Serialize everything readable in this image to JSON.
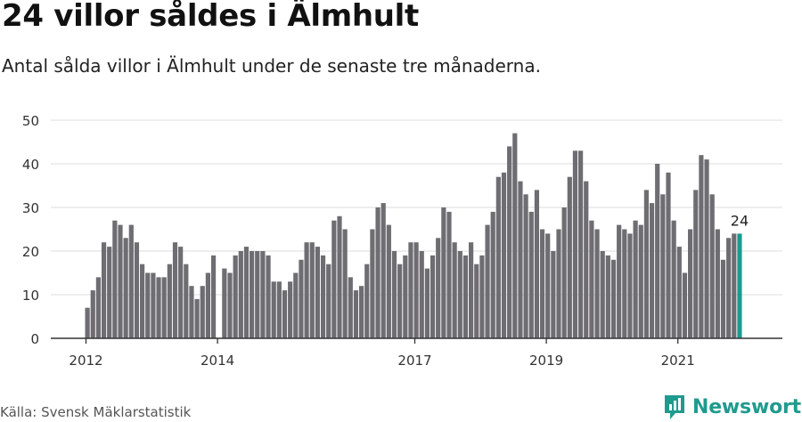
{
  "header": {
    "title": "24 villor såldes i Älmhult",
    "subtitle": "Antal sålda villor i Älmhult under de senaste tre månaderna."
  },
  "footer": {
    "source": "Källa: Svensk Mäklarstatistik",
    "brand": "Newsworthy"
  },
  "colors": {
    "bar": "#6e6d72",
    "highlight": "#1a9b8f",
    "grid": "#dddddd",
    "axis": "#333333",
    "brand": "#1f9b8e"
  },
  "chart_data": {
    "type": "bar",
    "x_unit": "month",
    "first_month": "2012-01",
    "ylim": [
      0,
      50
    ],
    "yticks": [
      0,
      10,
      20,
      30,
      40,
      50
    ],
    "xticks": [
      "2012",
      "2014",
      "2017",
      "2019",
      "2021"
    ],
    "grid": true,
    "values": [
      7,
      11,
      14,
      22,
      21,
      27,
      26,
      23,
      26,
      22,
      17,
      15,
      15,
      14,
      14,
      17,
      22,
      21,
      17,
      12,
      9,
      12,
      15,
      19,
      null,
      16,
      15,
      19,
      20,
      21,
      20,
      20,
      20,
      19,
      13,
      13,
      11,
      13,
      15,
      18,
      22,
      22,
      21,
      19,
      17,
      27,
      28,
      25,
      14,
      11,
      12,
      17,
      25,
      30,
      31,
      26,
      20,
      17,
      19,
      22,
      22,
      20,
      16,
      19,
      23,
      30,
      29,
      22,
      20,
      19,
      22,
      17,
      19,
      26,
      29,
      37,
      38,
      44,
      47,
      36,
      33,
      29,
      34,
      25,
      24,
      20,
      25,
      30,
      37,
      43,
      43,
      36,
      27,
      25,
      20,
      19,
      18,
      26,
      25,
      24,
      27,
      26,
      34,
      31,
      40,
      33,
      38,
      27,
      21,
      15,
      25,
      34,
      42,
      41,
      33,
      25,
      18,
      23,
      24,
      24
    ],
    "highlight_last": true,
    "annotation": "24"
  }
}
